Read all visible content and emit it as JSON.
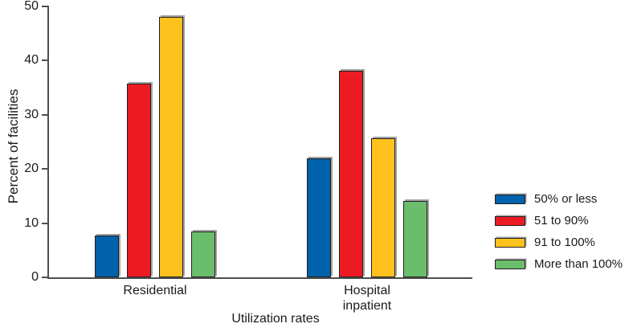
{
  "chart_data": {
    "type": "bar",
    "title": "",
    "categories": [
      "Residential",
      "Hospital inpatient"
    ],
    "series": [
      {
        "name": "50% or less",
        "color": "#0062AB",
        "values": [
          7.7,
          22.0
        ]
      },
      {
        "name": "51 to 90%",
        "color": "#EC1B23",
        "values": [
          35.7,
          38.1
        ]
      },
      {
        "name": "91 to 100%",
        "color": "#FEC11E",
        "values": [
          48.1,
          25.7
        ]
      },
      {
        "name": "More than 100%",
        "color": "#6ABE6B",
        "values": [
          8.4,
          14.1
        ]
      }
    ],
    "xlabel": "Utilization rates",
    "ylabel": "Percent of facilities",
    "ylim": [
      0,
      50
    ],
    "yticks": [
      0,
      10,
      20,
      30,
      40,
      50
    ],
    "grid": false,
    "legend_position": "right"
  },
  "colors": {
    "axis": "#4e4e4e",
    "bar_border": "#231f20",
    "background": "#ffffff",
    "text": "#1a1a1a"
  }
}
